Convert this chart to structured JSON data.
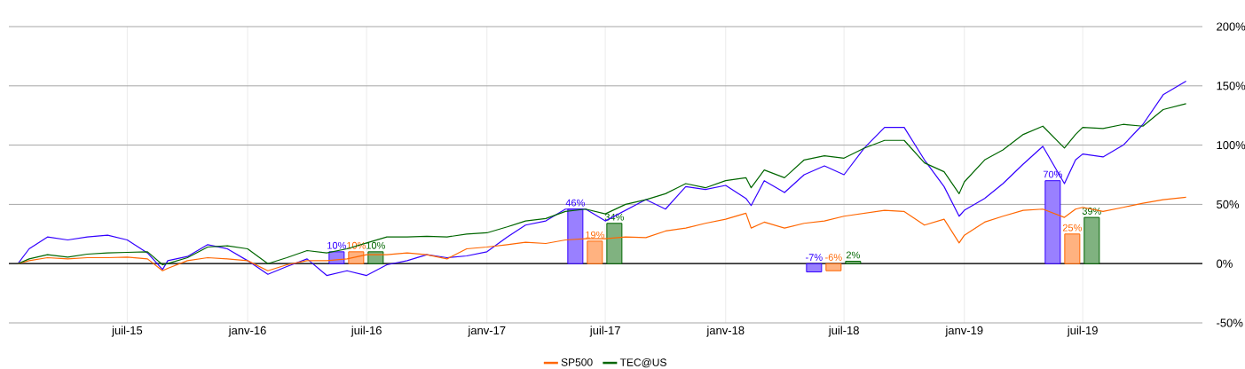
{
  "chart_data": {
    "type": "line",
    "x": [
      "2015-01-15",
      "2015-02-01",
      "2015-03-01",
      "2015-04-01",
      "2015-05-01",
      "2015-06-01",
      "2015-07-01",
      "2015-08-01",
      "2015-08-24",
      "2015-09-01",
      "2015-10-01",
      "2015-11-01",
      "2015-12-01",
      "2016-01-01",
      "2016-02-01",
      "2016-03-01",
      "2016-04-01",
      "2016-05-01",
      "2016-06-01",
      "2016-07-01",
      "2016-08-01",
      "2016-09-01",
      "2016-10-01",
      "2016-11-01",
      "2016-12-01",
      "2017-01-01",
      "2017-02-01",
      "2017-03-01",
      "2017-04-01",
      "2017-05-01",
      "2017-06-01",
      "2017-07-01",
      "2017-08-01",
      "2017-09-01",
      "2017-10-01",
      "2017-11-01",
      "2017-12-01",
      "2018-01-01",
      "2018-02-01",
      "2018-02-09",
      "2018-03-01",
      "2018-04-01",
      "2018-05-01",
      "2018-06-01",
      "2018-07-01",
      "2018-08-01",
      "2018-09-01",
      "2018-10-01",
      "2018-11-01",
      "2018-12-01",
      "2018-12-24",
      "2019-01-01",
      "2019-02-01",
      "2019-03-01",
      "2019-04-01",
      "2019-05-01",
      "2019-06-03",
      "2019-06-20",
      "2019-07-01",
      "2019-08-01",
      "2019-09-01",
      "2019-10-01",
      "2019-11-01",
      "2019-12-06"
    ],
    "xlim": [
      "2015-01-01",
      "2019-12-31"
    ],
    "xticks": [
      {
        "value": "2015-07-01",
        "label": "juil-15"
      },
      {
        "value": "2016-01-01",
        "label": "janv-16"
      },
      {
        "value": "2016-07-01",
        "label": "juil-16"
      },
      {
        "value": "2017-01-01",
        "label": "janv-17"
      },
      {
        "value": "2017-07-01",
        "label": "juil-17"
      },
      {
        "value": "2018-01-01",
        "label": "janv-18"
      },
      {
        "value": "2018-07-01",
        "label": "juil-18"
      },
      {
        "value": "2019-01-01",
        "label": "janv-19"
      },
      {
        "value": "2019-07-01",
        "label": "juil-19"
      }
    ],
    "ylim": [
      -50,
      200
    ],
    "yticks": [
      {
        "value": -50,
        "label": "-50%"
      },
      {
        "value": 0,
        "label": "0%"
      },
      {
        "value": 50,
        "label": "50%"
      },
      {
        "value": 100,
        "label": "100%"
      },
      {
        "value": 150,
        "label": "150%"
      },
      {
        "value": 200,
        "label": "200%"
      }
    ],
    "grid": true,
    "legend": "bottom",
    "series": [
      {
        "color": "#3300ff",
        "values": [
          0,
          12.5,
          22.5,
          20,
          22.5,
          24,
          20,
          9,
          -5,
          2.5,
          6,
          16,
          12.5,
          2.5,
          -9,
          -2.5,
          4,
          -10,
          -6,
          -10,
          -1,
          2.5,
          7.5,
          5,
          6.5,
          10,
          22.5,
          32.5,
          36,
          46,
          46,
          36,
          45,
          54,
          46,
          65,
          62.5,
          66,
          55,
          49,
          70,
          60,
          75,
          82.5,
          75,
          97.5,
          115,
          115,
          87.5,
          65,
          40,
          45,
          55,
          67.5,
          84,
          99,
          67.5,
          87.5,
          92.5,
          90,
          100,
          117.5,
          142.5,
          154
        ]
      },
      {
        "name": "SP500",
        "color": "#ff6600",
        "values": [
          0,
          2.5,
          5,
          4,
          5,
          5,
          5.5,
          4,
          -6,
          -4,
          2.5,
          5,
          4,
          2.5,
          -6,
          -1,
          2.5,
          2.5,
          4,
          7.5,
          7.5,
          9,
          7.5,
          4,
          12.5,
          14,
          16,
          18,
          17,
          20,
          21,
          21,
          22.5,
          22,
          27.5,
          30,
          34,
          37.5,
          42.5,
          30,
          35,
          30,
          34,
          36,
          40,
          42.5,
          45,
          44,
          32.5,
          37.5,
          17.5,
          24,
          35,
          40,
          45,
          46,
          39,
          46,
          47.5,
          44,
          47.5,
          51,
          54,
          56
        ]
      },
      {
        "name": "TEC@US",
        "color": "#006600",
        "values": [
          0,
          4,
          7.5,
          5.5,
          8,
          9,
          9.5,
          10,
          -1,
          0,
          5,
          14,
          15,
          12.5,
          0,
          5,
          11,
          9,
          12.5,
          17.5,
          22.5,
          22.5,
          23,
          22.5,
          25,
          26,
          31,
          36,
          38,
          44,
          46,
          42,
          50,
          54,
          59,
          67.5,
          64,
          70,
          72.5,
          64,
          79,
          72.5,
          87.5,
          91,
          89,
          97.5,
          104,
          104,
          85,
          77.5,
          59,
          69,
          87.5,
          96,
          109,
          116,
          97.5,
          109,
          115,
          114,
          117.5,
          116,
          130,
          135
        ]
      },
      {
        "type": "bar",
        "color": "#3300ff",
        "x": [
          "2016-06-15",
          "2017-06-15",
          "2018-06-15",
          "2019-06-15"
        ],
        "values": [
          10,
          46,
          -7,
          70
        ],
        "value_labels": [
          "10%",
          "46%",
          "-7%",
          "70%"
        ]
      },
      {
        "type": "bar",
        "color": "#ff6600",
        "x": [
          "2016-06-15",
          "2017-06-15",
          "2018-06-15",
          "2019-06-15"
        ],
        "values": [
          10,
          19,
          -6,
          25
        ],
        "value_labels": [
          "10%",
          "19%",
          "-6%",
          "25%"
        ]
      },
      {
        "type": "bar",
        "color": "#006600",
        "x": [
          "2016-06-15",
          "2017-06-15",
          "2018-06-15",
          "2019-06-15"
        ],
        "values": [
          10,
          34,
          2,
          39
        ],
        "value_labels": [
          "10%",
          "34%",
          "2%",
          "39%"
        ]
      }
    ]
  }
}
